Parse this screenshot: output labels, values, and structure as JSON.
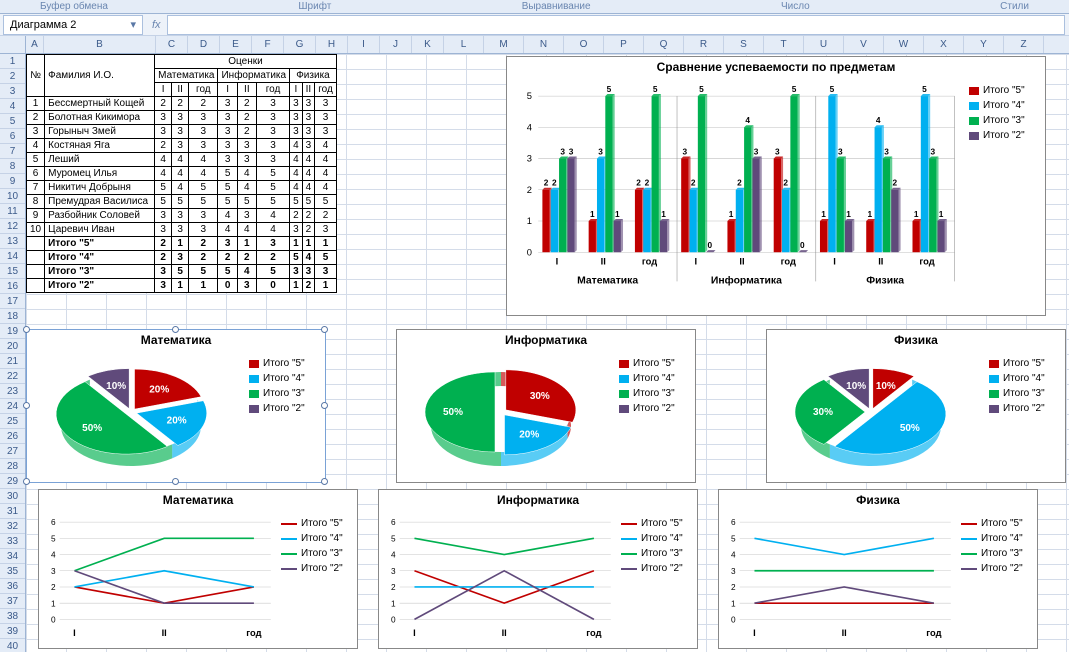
{
  "ribbon": {
    "sections": [
      "Буфер обмена",
      "Шрифт",
      "Выравнивание",
      "Число",
      "Стили"
    ]
  },
  "nameBox": "Диаграмма 2",
  "fxLabel": "fx",
  "columns": [
    "A",
    "B",
    "C",
    "D",
    "E",
    "F",
    "G",
    "H",
    "I",
    "J",
    "K",
    "L",
    "M",
    "N",
    "O",
    "P",
    "Q",
    "R",
    "S",
    "T",
    "U",
    "V",
    "W",
    "X",
    "Y",
    "Z"
  ],
  "rowCount": 40,
  "colHeaderWidths": [
    18,
    112,
    32,
    32,
    32,
    32,
    32,
    32,
    32,
    32,
    32
  ],
  "table": {
    "headerTop": [
      "№",
      "Фамилия И.О.",
      "Оценки"
    ],
    "headerSubjects": [
      "Математика",
      "Информатика",
      "Физика"
    ],
    "headerPeriods": [
      "I",
      "II",
      "год",
      "I",
      "II",
      "год",
      "I",
      "II",
      "год"
    ],
    "rows": [
      [
        "1",
        "Бессмертный Кощей",
        "2",
        "2",
        "2",
        "3",
        "2",
        "3",
        "3",
        "3",
        "3"
      ],
      [
        "2",
        "Болотная Кикимора",
        "3",
        "3",
        "3",
        "3",
        "2",
        "3",
        "3",
        "3",
        "3"
      ],
      [
        "3",
        "Горыныч Змей",
        "3",
        "3",
        "3",
        "3",
        "2",
        "3",
        "3",
        "3",
        "3"
      ],
      [
        "4",
        "Костяная Яга",
        "2",
        "3",
        "3",
        "3",
        "3",
        "3",
        "4",
        "3",
        "4"
      ],
      [
        "5",
        "Леший",
        "4",
        "4",
        "4",
        "3",
        "3",
        "3",
        "4",
        "4",
        "4"
      ],
      [
        "6",
        "Муромец Илья",
        "4",
        "4",
        "4",
        "5",
        "4",
        "5",
        "4",
        "4",
        "4"
      ],
      [
        "7",
        "Никитич Добрыня",
        "5",
        "4",
        "5",
        "5",
        "4",
        "5",
        "4",
        "4",
        "4"
      ],
      [
        "8",
        "Премудрая Василиса",
        "5",
        "5",
        "5",
        "5",
        "5",
        "5",
        "5",
        "5",
        "5"
      ],
      [
        "9",
        "Разбойник Соловей",
        "3",
        "3",
        "3",
        "4",
        "3",
        "4",
        "2",
        "2",
        "2"
      ],
      [
        "10",
        "Царевич Иван",
        "3",
        "3",
        "3",
        "4",
        "4",
        "4",
        "3",
        "2",
        "3"
      ]
    ],
    "totals": [
      [
        "Итого \"5\"",
        "2",
        "1",
        "2",
        "3",
        "1",
        "3",
        "1",
        "1",
        "1"
      ],
      [
        "Итого \"4\"",
        "2",
        "3",
        "2",
        "2",
        "2",
        "2",
        "5",
        "4",
        "5"
      ],
      [
        "Итого \"3\"",
        "3",
        "5",
        "5",
        "5",
        "4",
        "5",
        "3",
        "3",
        "3"
      ],
      [
        "Итого \"2\"",
        "3",
        "1",
        "1",
        "0",
        "3",
        "0",
        "1",
        "2",
        "1"
      ]
    ]
  },
  "palette": {
    "s5": "#c00000",
    "s4": "#00b0f0",
    "s3": "#00b050",
    "s2": "#604a7b"
  },
  "legendLabels": [
    "Итого \"5\"",
    "Итого \"4\"",
    "Итого \"3\"",
    "Итого \"2\""
  ],
  "barChart": {
    "title": "Сравнение успеваемости по предметам",
    "groups": [
      "Математика",
      "Информатика",
      "Физика"
    ],
    "periods": [
      "I",
      "II",
      "год"
    ],
    "ymax": 5,
    "data": {
      "Математика": {
        "I": [
          2,
          2,
          3,
          3
        ],
        "II": [
          1,
          3,
          5,
          1
        ],
        "год": [
          2,
          2,
          5,
          1
        ]
      },
      "Информатика": {
        "I": [
          3,
          2,
          5,
          0
        ],
        "II": [
          1,
          2,
          4,
          3
        ],
        "год": [
          3,
          2,
          5,
          0
        ]
      },
      "Физика": {
        "I": [
          1,
          5,
          3,
          1
        ],
        "II": [
          1,
          4,
          3,
          2
        ],
        "год": [
          1,
          5,
          3,
          1
        ]
      }
    },
    "labelColor": "#000",
    "gridColor": "#bfbfbf"
  },
  "pies": [
    {
      "title": "Математика",
      "slices": [
        20,
        20,
        50,
        10
      ],
      "selected": true
    },
    {
      "title": "Информатика",
      "slices": [
        30,
        20,
        50,
        0
      ],
      "selected": false
    },
    {
      "title": "Физика",
      "slices": [
        10,
        50,
        30,
        10
      ],
      "selected": false
    }
  ],
  "lines": [
    {
      "title": "Математика",
      "series": [
        [
          2,
          1,
          2
        ],
        [
          2,
          3,
          2
        ],
        [
          3,
          5,
          5
        ],
        [
          3,
          1,
          1
        ]
      ]
    },
    {
      "title": "Информатика",
      "series": [
        [
          3,
          1,
          3
        ],
        [
          2,
          2,
          2
        ],
        [
          5,
          4,
          5
        ],
        [
          0,
          3,
          0
        ]
      ]
    },
    {
      "title": "Физика",
      "series": [
        [
          1,
          1,
          1
        ],
        [
          5,
          4,
          5
        ],
        [
          3,
          3,
          3
        ],
        [
          1,
          2,
          1
        ]
      ]
    }
  ],
  "lineXLabels": [
    "I",
    "II",
    "год"
  ],
  "lineYmax": 6
}
